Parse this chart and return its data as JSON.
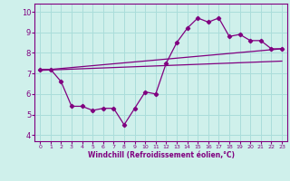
{
  "title": "",
  "xlabel": "Windchill (Refroidissement éolien,°C)",
  "bg_color": "#cff0eb",
  "grid_color": "#aaddda",
  "line_color": "#800080",
  "axis_color": "#800080",
  "x_ticks": [
    0,
    1,
    2,
    3,
    4,
    5,
    6,
    7,
    8,
    9,
    10,
    11,
    12,
    13,
    14,
    15,
    16,
    17,
    18,
    19,
    20,
    21,
    22,
    23
  ],
  "y_ticks": [
    4,
    5,
    6,
    7,
    8,
    9,
    10
  ],
  "ylim": [
    3.7,
    10.4
  ],
  "xlim": [
    -0.5,
    23.5
  ],
  "series1_x": [
    0,
    1,
    2,
    3,
    4,
    5,
    6,
    7,
    8,
    9,
    10,
    11,
    12,
    13,
    14,
    15,
    16,
    17,
    18,
    19,
    20,
    21,
    22,
    23
  ],
  "series1_y": [
    7.2,
    7.2,
    6.6,
    5.4,
    5.4,
    5.2,
    5.3,
    5.3,
    4.5,
    5.3,
    6.1,
    6.0,
    7.5,
    8.5,
    9.2,
    9.7,
    9.5,
    9.7,
    8.8,
    8.9,
    8.6,
    8.6,
    8.2,
    8.2
  ],
  "series2_x": [
    0,
    23
  ],
  "series2_y": [
    7.15,
    8.2
  ],
  "series3_x": [
    0,
    23
  ],
  "series3_y": [
    7.15,
    7.6
  ]
}
